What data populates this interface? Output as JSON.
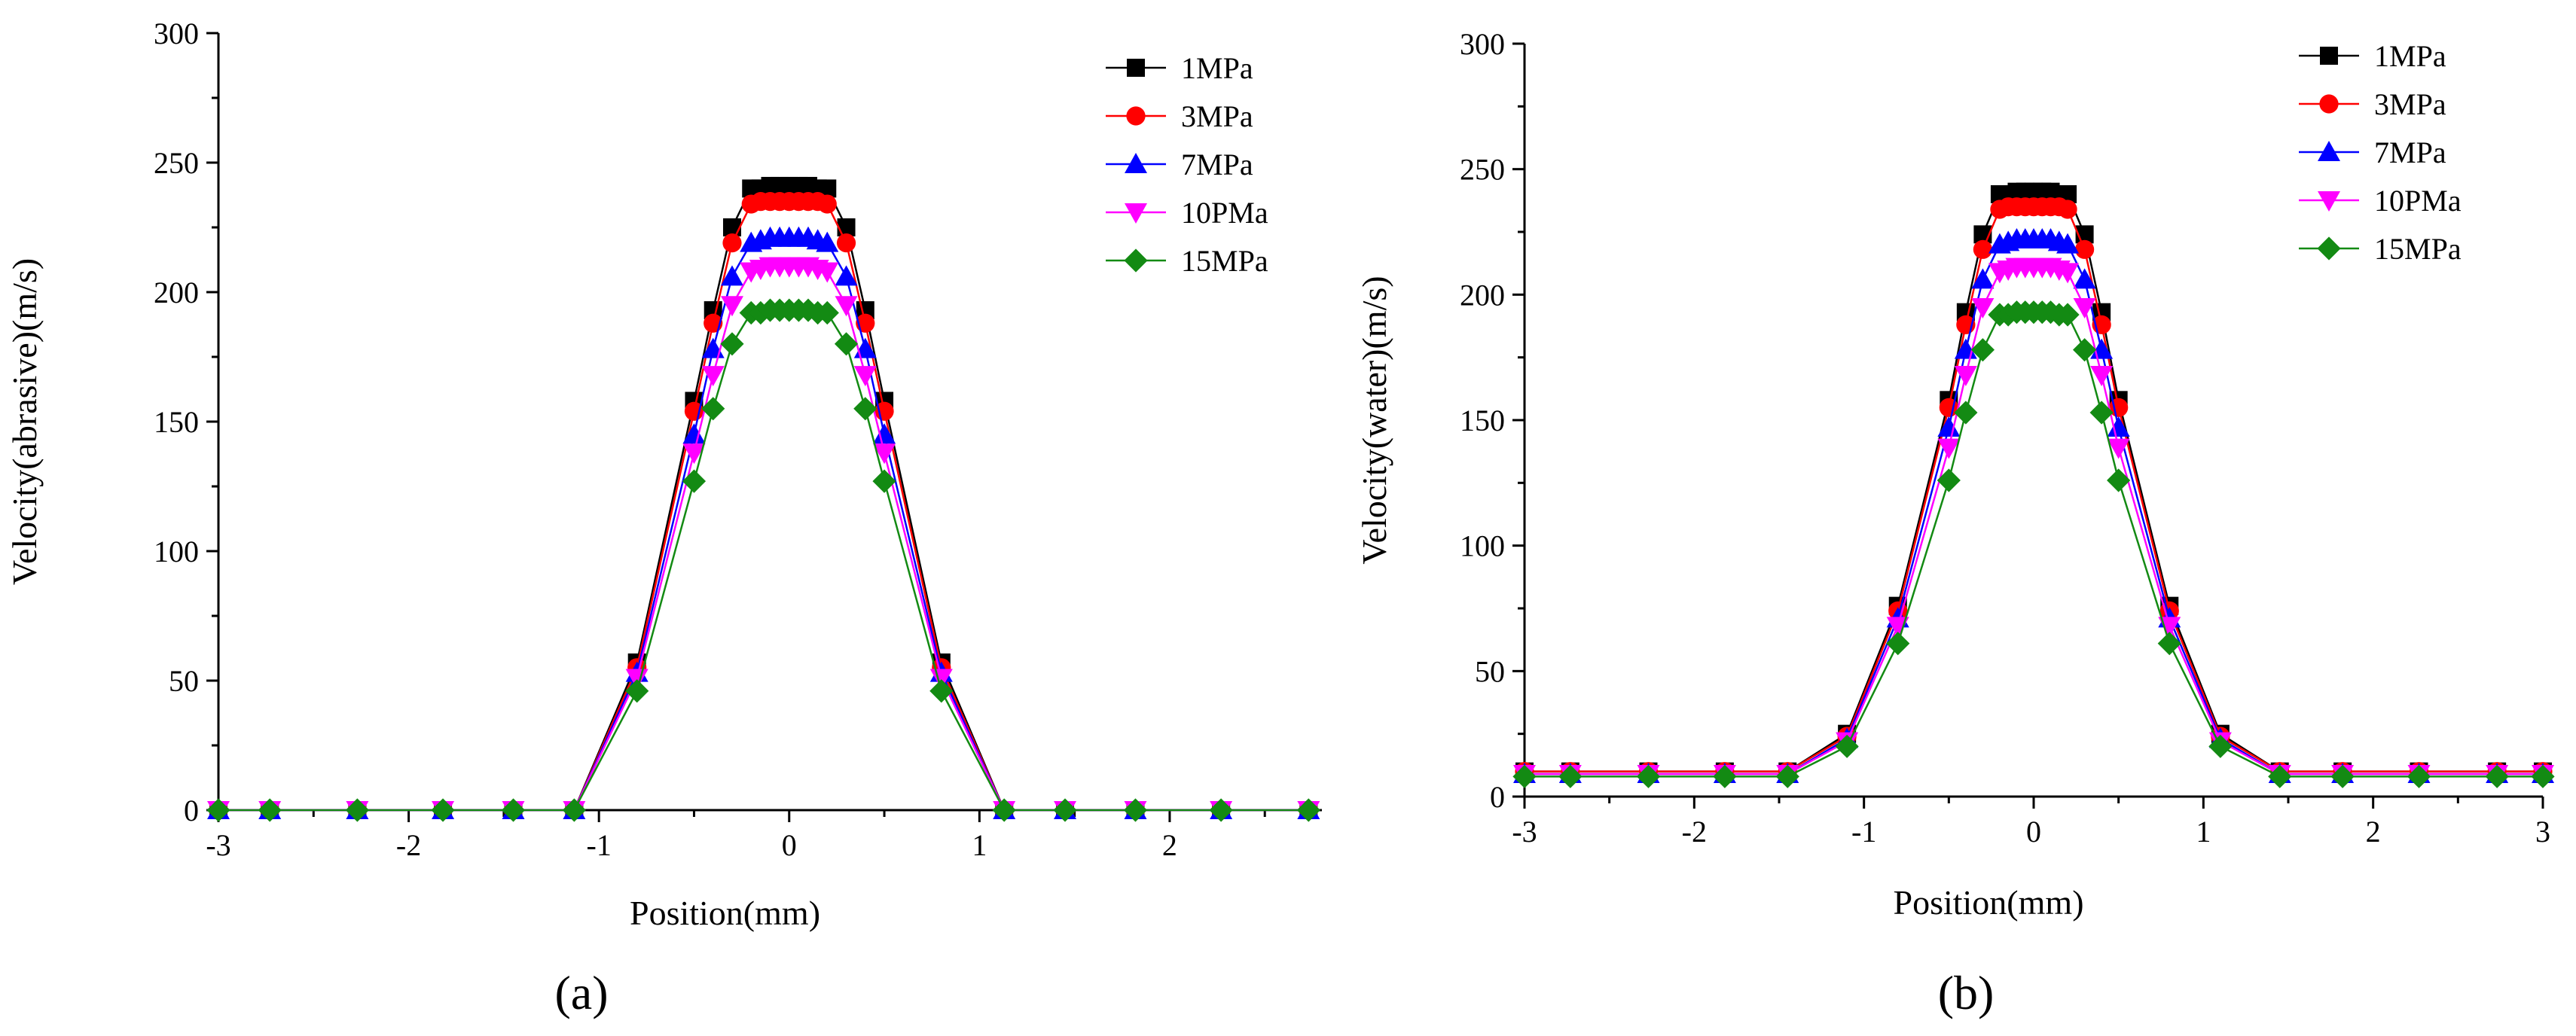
{
  "chart_data": [
    {
      "type": "line",
      "panel_label": "(a)",
      "xlabel": "Position(mm)",
      "ylabel": "Velocity(abrasive)(m/s)",
      "xlim": [
        -3,
        2.8
      ],
      "ylim": [
        0,
        300
      ],
      "xticks": [
        "-3",
        "-2",
        "-1",
        "0",
        "1",
        "2"
      ],
      "yticks": [
        "0",
        "50",
        "100",
        "150",
        "200",
        "250",
        "300"
      ],
      "legend_position": "top-right",
      "series": [
        {
          "name": "1MPa",
          "marker": "square",
          "color": "#000000",
          "x": [
            -3.0,
            -2.73,
            -2.27,
            -1.82,
            -1.45,
            -1.13,
            -0.8,
            -0.5,
            -0.4,
            -0.3,
            -0.2,
            -0.15,
            -0.1,
            -0.05,
            0.0,
            0.05,
            0.1,
            0.15,
            0.2,
            0.3,
            0.4,
            0.5,
            0.8,
            1.13,
            1.45,
            1.82,
            2.27,
            2.73
          ],
          "y": [
            0,
            0,
            0,
            0,
            0,
            0,
            57,
            158,
            193,
            225,
            240,
            240,
            241,
            241,
            241,
            241,
            241,
            240,
            240,
            225,
            193,
            158,
            57,
            0,
            0,
            0,
            0,
            0
          ]
        },
        {
          "name": "3MPa",
          "marker": "circle",
          "color": "#ff0000",
          "x": [
            -3.0,
            -2.73,
            -2.27,
            -1.82,
            -1.45,
            -1.13,
            -0.8,
            -0.5,
            -0.4,
            -0.3,
            -0.2,
            -0.15,
            -0.1,
            -0.05,
            0.0,
            0.05,
            0.1,
            0.15,
            0.2,
            0.3,
            0.4,
            0.5,
            0.8,
            1.13,
            1.45,
            1.82,
            2.27,
            2.73
          ],
          "y": [
            0,
            0,
            0,
            0,
            0,
            0,
            55,
            154,
            188,
            219,
            234,
            235,
            235,
            235,
            235,
            235,
            235,
            235,
            234,
            219,
            188,
            154,
            55,
            0,
            0,
            0,
            0,
            0
          ]
        },
        {
          "name": "7MPa",
          "marker": "triangle-up",
          "color": "#0000ff",
          "x": [
            -3.0,
            -2.73,
            -2.27,
            -1.82,
            -1.45,
            -1.13,
            -0.8,
            -0.5,
            -0.4,
            -0.3,
            -0.2,
            -0.15,
            -0.1,
            -0.05,
            0.0,
            0.05,
            0.1,
            0.15,
            0.2,
            0.3,
            0.4,
            0.5,
            0.8,
            1.13,
            1.45,
            1.82,
            2.27,
            2.73
          ],
          "y": [
            0,
            0,
            0,
            0,
            0,
            0,
            53,
            145,
            178,
            206,
            219,
            220,
            221,
            221,
            221,
            221,
            221,
            220,
            219,
            206,
            178,
            145,
            53,
            0,
            0,
            0,
            0,
            0
          ]
        },
        {
          "name": "10PMa",
          "marker": "triangle-down",
          "color": "#ff00ff",
          "x": [
            -3.0,
            -2.73,
            -2.27,
            -1.82,
            -1.45,
            -1.13,
            -0.8,
            -0.5,
            -0.4,
            -0.3,
            -0.2,
            -0.15,
            -0.1,
            -0.05,
            0.0,
            0.05,
            0.1,
            0.15,
            0.2,
            0.3,
            0.4,
            0.5,
            0.8,
            1.13,
            1.45,
            1.82,
            2.27,
            2.73
          ],
          "y": [
            0,
            0,
            0,
            0,
            0,
            0,
            51,
            138,
            168,
            195,
            208,
            209,
            210,
            210,
            210,
            210,
            210,
            209,
            208,
            195,
            168,
            138,
            51,
            0,
            0,
            0,
            0,
            0
          ]
        },
        {
          "name": "15MPa",
          "marker": "diamond",
          "color": "#138a13",
          "x": [
            -3.0,
            -2.73,
            -2.27,
            -1.82,
            -1.45,
            -1.13,
            -0.8,
            -0.5,
            -0.4,
            -0.3,
            -0.2,
            -0.15,
            -0.1,
            -0.05,
            0.0,
            0.05,
            0.1,
            0.15,
            0.2,
            0.3,
            0.4,
            0.5,
            0.8,
            1.13,
            1.45,
            1.82,
            2.27,
            2.73
          ],
          "y": [
            0,
            0,
            0,
            0,
            0,
            0,
            46,
            127,
            155,
            180,
            192,
            192,
            193,
            193,
            193,
            193,
            193,
            192,
            192,
            180,
            155,
            127,
            46,
            0,
            0,
            0,
            0,
            0
          ]
        }
      ]
    },
    {
      "type": "line",
      "panel_label": "(b)",
      "xlabel": "Position(mm)",
      "ylabel": "Velocity(water)(m/s)",
      "xlim": [
        -3,
        3
      ],
      "ylim": [
        0,
        300
      ],
      "xticks": [
        "-3",
        "-2",
        "-1",
        "0",
        "1",
        "2",
        "3"
      ],
      "yticks": [
        "0",
        "50",
        "100",
        "150",
        "200",
        "250",
        "300"
      ],
      "legend_position": "top-right",
      "series": [
        {
          "name": "1MPa",
          "marker": "square",
          "color": "#000000",
          "x": [
            -3.0,
            -2.73,
            -2.27,
            -1.82,
            -1.45,
            -1.1,
            -0.8,
            -0.5,
            -0.4,
            -0.3,
            -0.2,
            -0.15,
            -0.1,
            -0.05,
            0.0,
            0.05,
            0.1,
            0.15,
            0.2,
            0.3,
            0.4,
            0.5,
            0.8,
            1.1,
            1.45,
            1.82,
            2.27,
            2.73,
            3.0
          ],
          "y": [
            10,
            10,
            10,
            10,
            10,
            25,
            76,
            158,
            193,
            224,
            240,
            240,
            241,
            241,
            241,
            241,
            241,
            240,
            240,
            224,
            193,
            158,
            76,
            25,
            10,
            10,
            10,
            10,
            10
          ]
        },
        {
          "name": "3MPa",
          "marker": "circle",
          "color": "#ff0000",
          "x": [
            -3.0,
            -2.73,
            -2.27,
            -1.82,
            -1.45,
            -1.1,
            -0.8,
            -0.5,
            -0.4,
            -0.3,
            -0.2,
            -0.15,
            -0.1,
            -0.05,
            0.0,
            0.05,
            0.1,
            0.15,
            0.2,
            0.3,
            0.4,
            0.5,
            0.8,
            1.1,
            1.45,
            1.82,
            2.27,
            2.73,
            3.0
          ],
          "y": [
            10,
            10,
            10,
            10,
            10,
            24,
            74,
            155,
            188,
            218,
            234,
            235,
            235,
            235,
            235,
            235,
            235,
            235,
            234,
            218,
            188,
            155,
            74,
            24,
            10,
            10,
            10,
            10,
            10
          ]
        },
        {
          "name": "7MPa",
          "marker": "triangle-up",
          "color": "#0000ff",
          "x": [
            -3.0,
            -2.73,
            -2.27,
            -1.82,
            -1.45,
            -1.1,
            -0.8,
            -0.5,
            -0.4,
            -0.3,
            -0.2,
            -0.15,
            -0.1,
            -0.05,
            0.0,
            0.05,
            0.1,
            0.15,
            0.2,
            0.3,
            0.4,
            0.5,
            0.8,
            1.1,
            1.45,
            1.82,
            2.27,
            2.73,
            3.0
          ],
          "y": [
            9,
            9,
            9,
            9,
            9,
            23,
            71,
            147,
            178,
            206,
            220,
            221,
            222,
            222,
            222,
            222,
            222,
            221,
            220,
            206,
            178,
            147,
            71,
            23,
            9,
            9,
            9,
            9,
            9
          ]
        },
        {
          "name": "10PMa",
          "marker": "triangle-down",
          "color": "#ff00ff",
          "x": [
            -3.0,
            -2.73,
            -2.27,
            -1.82,
            -1.45,
            -1.1,
            -0.8,
            -0.5,
            -0.4,
            -0.3,
            -0.2,
            -0.15,
            -0.1,
            -0.05,
            0.0,
            0.05,
            0.1,
            0.15,
            0.2,
            0.3,
            0.4,
            0.5,
            0.8,
            1.1,
            1.45,
            1.82,
            2.27,
            2.73,
            3.0
          ],
          "y": [
            9,
            9,
            9,
            9,
            9,
            22,
            68,
            139,
            168,
            195,
            209,
            210,
            211,
            211,
            211,
            211,
            211,
            210,
            209,
            195,
            168,
            139,
            68,
            22,
            9,
            9,
            9,
            9,
            9
          ]
        },
        {
          "name": "15MPa",
          "marker": "diamond",
          "color": "#138a13",
          "x": [
            -3.0,
            -2.73,
            -2.27,
            -1.82,
            -1.45,
            -1.1,
            -0.8,
            -0.5,
            -0.4,
            -0.3,
            -0.2,
            -0.15,
            -0.1,
            -0.05,
            0.0,
            0.05,
            0.1,
            0.15,
            0.2,
            0.3,
            0.4,
            0.5,
            0.8,
            1.1,
            1.45,
            1.82,
            2.27,
            2.73,
            3.0
          ],
          "y": [
            8,
            8,
            8,
            8,
            8,
            20,
            61,
            126,
            153,
            178,
            192,
            192,
            193,
            193,
            193,
            193,
            193,
            192,
            192,
            178,
            153,
            126,
            61,
            20,
            8,
            8,
            8,
            8,
            8
          ]
        }
      ]
    }
  ]
}
